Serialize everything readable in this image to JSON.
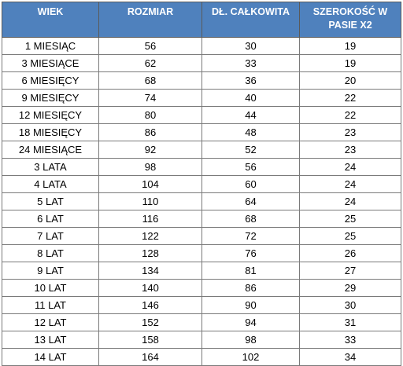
{
  "table": {
    "headers": [
      "WIEK",
      "ROZMIAR",
      "DŁ. CAŁKOWITA",
      "SZEROKOŚĆ W PASIE X2"
    ],
    "rows": [
      [
        "1 MIESIĄC",
        "56",
        "30",
        "19"
      ],
      [
        "3 MIESIĄCE",
        "62",
        "33",
        "19"
      ],
      [
        "6 MIESIĘCY",
        "68",
        "36",
        "20"
      ],
      [
        "9 MIESIĘCY",
        "74",
        "40",
        "22"
      ],
      [
        "12 MIESIĘCY",
        "80",
        "44",
        "22"
      ],
      [
        "18 MIESIĘCY",
        "86",
        "48",
        "23"
      ],
      [
        "24 MIESIĄCE",
        "92",
        "52",
        "23"
      ],
      [
        "3 LATA",
        "98",
        "56",
        "24"
      ],
      [
        "4 LATA",
        "104",
        "60",
        "24"
      ],
      [
        "5 LAT",
        "110",
        "64",
        "24"
      ],
      [
        "6 LAT",
        "116",
        "68",
        "25"
      ],
      [
        "7 LAT",
        "122",
        "72",
        "25"
      ],
      [
        "8 LAT",
        "128",
        "76",
        "26"
      ],
      [
        "9 LAT",
        "134",
        "81",
        "27"
      ],
      [
        "10 LAT",
        "140",
        "86",
        "29"
      ],
      [
        "11 LAT",
        "146",
        "90",
        "30"
      ],
      [
        "12 LAT",
        "152",
        "94",
        "31"
      ],
      [
        "13 LAT",
        "158",
        "98",
        "33"
      ],
      [
        "14 LAT",
        "164",
        "102",
        "34"
      ]
    ]
  },
  "colors": {
    "header_background": "#4f81bd",
    "header_text": "#ffffff"
  }
}
